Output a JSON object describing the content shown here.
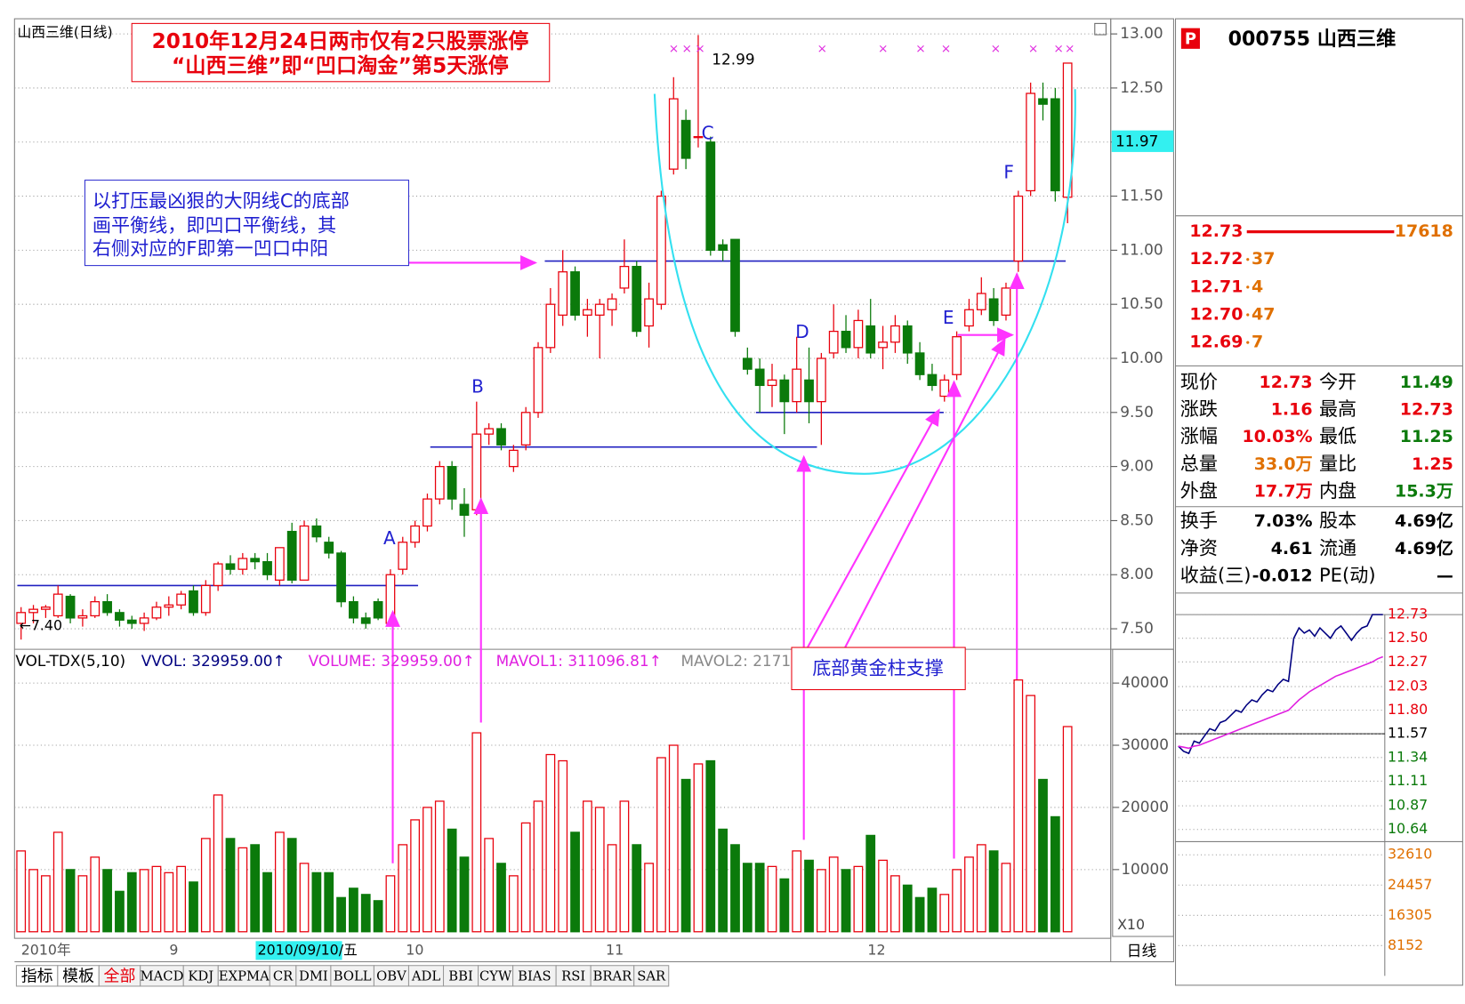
{
  "header": {
    "stock_label": "山西三维(日线)"
  },
  "annotations": {
    "title_lines": [
      "2010年12月24日两市仅有2只股票涨停",
      "“山西三维”即“凹口淘金”第5天涨停"
    ],
    "note_lines": [
      "以打压最凶狠的大阴线C的底部",
      "画平衡线，即凹口平衡线，其",
      "右侧对应的F即第一凹口中阳"
    ],
    "support_label": "底部黄金柱支撑",
    "points": [
      "A",
      "B",
      "C",
      "D",
      "E",
      "F"
    ],
    "high_label": "12.99",
    "low_label": "←7.40",
    "price_marker": "11.97"
  },
  "chart_data": [
    {
      "type": "candlestick",
      "up_color": "#e8000c",
      "down_color": "#0b7a0b",
      "ylim": [
        7.31,
        13.14
      ],
      "yticks": [
        {
          "value": 13,
          "label": "13.00"
        },
        {
          "value": 12.5,
          "label": "12.50"
        },
        {
          "value": 12,
          "label": "12.00"
        },
        {
          "value": 11.5,
          "label": "11.50"
        },
        {
          "value": 11,
          "label": "11.00"
        },
        {
          "value": 10.5,
          "label": "10.50"
        },
        {
          "value": 10,
          "label": "10.00"
        },
        {
          "value": 9.5,
          "label": "9.50"
        },
        {
          "value": 9,
          "label": "9.00"
        },
        {
          "value": 8.5,
          "label": "8.50"
        },
        {
          "value": 8,
          "label": "8.00"
        },
        {
          "value": 7.5,
          "label": "7.50"
        }
      ],
      "levels": [
        7.9,
        9.18,
        10.9,
        9.5
      ],
      "ohlc": [
        [
          7.55,
          7.7,
          7.4,
          7.65
        ],
        [
          7.65,
          7.72,
          7.55,
          7.68
        ],
        [
          7.68,
          7.72,
          7.6,
          7.7
        ],
        [
          7.62,
          7.9,
          7.6,
          7.82
        ],
        [
          7.8,
          7.82,
          7.55,
          7.6
        ],
        [
          7.6,
          7.68,
          7.52,
          7.62
        ],
        [
          7.62,
          7.8,
          7.6,
          7.75
        ],
        [
          7.75,
          7.82,
          7.62,
          7.65
        ],
        [
          7.65,
          7.68,
          7.52,
          7.58
        ],
        [
          7.58,
          7.62,
          7.5,
          7.55
        ],
        [
          7.55,
          7.65,
          7.48,
          7.6
        ],
        [
          7.6,
          7.75,
          7.58,
          7.7
        ],
        [
          7.7,
          7.8,
          7.62,
          7.72
        ],
        [
          7.72,
          7.85,
          7.68,
          7.82
        ],
        [
          7.85,
          7.9,
          7.62,
          7.65
        ],
        [
          7.65,
          7.95,
          7.62,
          7.9
        ],
        [
          7.9,
          8.12,
          7.85,
          8.1
        ],
        [
          8.1,
          8.18,
          8,
          8.05
        ],
        [
          8.05,
          8.2,
          8,
          8.15
        ],
        [
          8.15,
          8.2,
          8.05,
          8.12
        ],
        [
          8.12,
          8.2,
          7.95,
          8
        ],
        [
          7.95,
          8.25,
          7.9,
          8.25
        ],
        [
          8.4,
          8.48,
          7.92,
          7.95
        ],
        [
          7.95,
          8.5,
          7.95,
          8.45
        ],
        [
          8.45,
          8.52,
          8.3,
          8.35
        ],
        [
          8.3,
          8.35,
          8.15,
          8.2
        ],
        [
          8.2,
          8.22,
          7.7,
          7.75
        ],
        [
          7.75,
          7.8,
          7.55,
          7.6
        ],
        [
          7.6,
          7.65,
          7.5,
          7.55
        ],
        [
          7.75,
          7.78,
          7.58,
          7.6
        ],
        [
          7.55,
          8.05,
          7.52,
          8
        ],
        [
          8.05,
          8.35,
          8,
          8.3
        ],
        [
          8.3,
          8.5,
          8.25,
          8.45
        ],
        [
          8.45,
          8.75,
          8.4,
          8.7
        ],
        [
          8.7,
          9.05,
          8.65,
          9
        ],
        [
          9,
          9.05,
          8.6,
          8.7
        ],
        [
          8.65,
          8.8,
          8.35,
          8.55
        ],
        [
          8.6,
          9.6,
          8.55,
          9.3
        ],
        [
          9.3,
          9.4,
          9.2,
          9.35
        ],
        [
          9.35,
          9.4,
          9.15,
          9.2
        ],
        [
          9,
          9.2,
          8.95,
          9.15
        ],
        [
          9.2,
          9.55,
          9.15,
          9.5
        ],
        [
          9.5,
          10.15,
          9.45,
          10.1
        ],
        [
          10.1,
          10.65,
          10.05,
          10.5
        ],
        [
          10.4,
          11,
          10.3,
          10.8
        ],
        [
          10.8,
          10.85,
          10.35,
          10.4
        ],
        [
          10.4,
          10.55,
          10.2,
          10.45
        ],
        [
          10.4,
          10.55,
          10,
          10.5
        ],
        [
          10.45,
          10.6,
          10.3,
          10.55
        ],
        [
          10.65,
          11.1,
          10.6,
          10.85
        ],
        [
          10.85,
          10.9,
          10.2,
          10.25
        ],
        [
          10.3,
          10.7,
          10.1,
          10.55
        ],
        [
          10.5,
          11.55,
          10.45,
          11.5
        ],
        [
          11.75,
          12.6,
          11.7,
          12.4
        ],
        [
          12.2,
          12.3,
          11.75,
          11.85
        ],
        [
          12.05,
          12.99,
          11.95,
          12.05
        ],
        [
          12,
          12.05,
          10.95,
          11
        ],
        [
          11.05,
          11.1,
          10.9,
          11
        ],
        [
          11.1,
          11.1,
          10.2,
          10.25
        ],
        [
          10,
          10.1,
          9.85,
          9.9
        ],
        [
          9.9,
          10,
          9.5,
          9.75
        ],
        [
          9.75,
          9.95,
          9.55,
          9.8
        ],
        [
          9.8,
          9.85,
          9.3,
          9.6
        ],
        [
          9.6,
          10.2,
          9.5,
          9.9
        ],
        [
          9.8,
          10.1,
          9.4,
          9.6
        ],
        [
          9.6,
          10.05,
          9.2,
          10
        ],
        [
          10.05,
          10.5,
          10,
          10.25
        ],
        [
          10.25,
          10.4,
          10.05,
          10.1
        ],
        [
          10.1,
          10.45,
          10,
          10.35
        ],
        [
          10.3,
          10.55,
          10,
          10.05
        ],
        [
          10.1,
          10.3,
          9.9,
          10.15
        ],
        [
          10.15,
          10.4,
          10.05,
          10.3
        ],
        [
          10.3,
          10.35,
          9.95,
          10.05
        ],
        [
          10.05,
          10.15,
          9.8,
          9.85
        ],
        [
          9.85,
          9.95,
          9.7,
          9.75
        ],
        [
          9.65,
          9.85,
          9.6,
          9.8
        ],
        [
          9.85,
          10.25,
          9.8,
          10.2
        ],
        [
          10.3,
          10.55,
          10.25,
          10.45
        ],
        [
          10.45,
          10.75,
          10.4,
          10.6
        ],
        [
          10.55,
          10.65,
          10.3,
          10.35
        ],
        [
          10.4,
          10.7,
          10.35,
          10.65
        ],
        [
          10.9,
          11.55,
          10.8,
          11.5
        ],
        [
          11.55,
          12.55,
          11.5,
          12.45
        ],
        [
          12.4,
          12.55,
          12.2,
          12.35
        ],
        [
          12.4,
          12.5,
          11.45,
          11.55
        ],
        [
          11.49,
          12.73,
          11.25,
          12.73
        ]
      ]
    },
    {
      "type": "bar",
      "ylim": [
        -300,
        45430
      ],
      "yticks": [
        10000,
        20000,
        30000,
        40000
      ],
      "values": [
        13000,
        10000,
        9000,
        16000,
        10000,
        9000,
        12000,
        10000,
        6500,
        9500,
        10000,
        10500,
        9500,
        10500,
        8000,
        15000,
        22000,
        15000,
        13500,
        14000,
        9500,
        16000,
        15000,
        11000,
        9500,
        9500,
        5500,
        7000,
        6000,
        5000,
        9000,
        14000,
        18000,
        20000,
        21000,
        16500,
        12000,
        32000,
        15000,
        11000,
        9000,
        17500,
        21000,
        28500,
        27500,
        16000,
        21000,
        20000,
        14000,
        21000,
        14000,
        11000,
        28000,
        30000,
        24500,
        27000,
        27500,
        16500,
        14000,
        11000,
        11000,
        10500,
        8500,
        13000,
        11500,
        10000,
        12000,
        10000,
        10500,
        15500,
        11500,
        9000,
        7500,
        5500,
        7000,
        6000,
        10000,
        12000,
        14000,
        13000,
        11000,
        40500,
        38000,
        24500,
        18500,
        33000
      ]
    },
    {
      "type": "line",
      "ylim": [
        10.64,
        12.73
      ],
      "yticks": [
        12.73,
        {
          "value": 12.5,
          "label": "12.50"
        },
        12.27,
        12.03,
        {
          "value": 11.8,
          "label": "11.80"
        },
        11.57,
        11.34,
        11.11,
        10.87,
        10.64
      ],
      "vol_ylim": [
        0,
        32610
      ],
      "vol_ticks": [
        32610,
        24457,
        16305,
        8152
      ],
      "series": [
        {
          "color": "#000080",
          "values": [
            11.45,
            11.4,
            11.38,
            11.5,
            11.48,
            11.55,
            11.62,
            11.6,
            11.68,
            11.7,
            11.75,
            11.8,
            11.78,
            11.85,
            11.9,
            11.88,
            11.95,
            12,
            11.98,
            12.05,
            12.1,
            12.08,
            12.5,
            12.6,
            12.55,
            12.58,
            12.52,
            12.6,
            12.55,
            12.5,
            12.58,
            12.62,
            12.55,
            12.48,
            12.55,
            12.6,
            12.62,
            12.73,
            12.73,
            12.73
          ]
        },
        {
          "color": "#e020e0",
          "values": [
            11.45,
            11.44,
            11.43,
            11.45,
            11.46,
            11.48,
            11.5,
            11.52,
            11.54,
            11.56,
            11.58,
            11.6,
            11.62,
            11.64,
            11.66,
            11.68,
            11.7,
            11.72,
            11.74,
            11.76,
            11.78,
            11.8,
            11.85,
            11.9,
            11.94,
            11.98,
            12.01,
            12.04,
            12.07,
            12.1,
            12.13,
            12.15,
            12.17,
            12.19,
            12.21,
            12.23,
            12.25,
            12.27,
            12.3,
            12.32
          ]
        }
      ]
    }
  ],
  "volume_header": [
    "VOL-TDX(5,10)",
    "VVOL: 329959.00↑",
    "VOLUME: 329959.00↑",
    "MAVOL1: 311096.81↑",
    "MAVOL2: 2171"
  ],
  "volume_scale": "X10",
  "date_axis": {
    "labels": [
      "2010年",
      "9",
      "2010/09/10/五",
      "10",
      "11",
      "12"
    ],
    "period": "日线"
  },
  "tabs": [
    "指标",
    "模板",
    "全部",
    "MACD",
    "KDJ",
    "EXPMA",
    "CR",
    "DMI",
    "BOLL",
    "OBV",
    "ADL",
    "BBI",
    "CYW",
    "BIAS",
    "RSI",
    "BRAR",
    "SAR"
  ],
  "quote": {
    "badge": "P",
    "stock": "000755 山西三维",
    "book": [
      {
        "price": "12.73",
        "vol": "17618"
      },
      {
        "price": "12.72",
        "vol": "37"
      },
      {
        "price": "12.71",
        "vol": "4"
      },
      {
        "price": "12.70",
        "vol": "47"
      },
      {
        "price": "12.69",
        "vol": "7"
      }
    ],
    "stats": [
      [
        {
          "text": "现价"
        },
        {
          "text": "12.73",
          "color": "#e8000c"
        },
        {
          "text": "今开"
        },
        {
          "text": "11.49",
          "color": "#0b7a0b"
        }
      ],
      [
        {
          "text": "涨跌"
        },
        {
          "text": "1.16",
          "color": "#e8000c"
        },
        {
          "text": "最高"
        },
        {
          "text": "12.73",
          "color": "#e8000c"
        }
      ],
      [
        {
          "text": "涨幅"
        },
        {
          "text": "10.03%",
          "color": "#e8000c"
        },
        {
          "text": "最低"
        },
        {
          "text": "11.25",
          "color": "#0b7a0b"
        }
      ],
      [
        {
          "text": "总量"
        },
        {
          "text": "33.0万",
          "color": "#e07000"
        },
        {
          "text": "量比"
        },
        {
          "text": "1.25",
          "color": "#e8000c"
        }
      ],
      [
        {
          "text": "外盘"
        },
        {
          "text": "17.7万",
          "color": "#e8000c"
        },
        {
          "text": "内盘"
        },
        {
          "text": "15.3万",
          "color": "#0b7a0b"
        }
      ],
      [
        {
          "text": "换手"
        },
        {
          "text": "7.03%",
          "color": "#000"
        },
        {
          "text": "股本"
        },
        {
          "text": "4.69亿",
          "color": "#000"
        }
      ],
      [
        {
          "text": "净资"
        },
        {
          "text": "4.61",
          "color": "#000"
        },
        {
          "text": "流通"
        },
        {
          "text": "4.69亿",
          "color": "#000"
        }
      ],
      [
        {
          "text": "收益(三)"
        },
        {
          "text": "-0.012",
          "color": "#000"
        },
        {
          "text": "PE(动)"
        },
        {
          "text": "—",
          "color": "#000"
        }
      ]
    ]
  }
}
